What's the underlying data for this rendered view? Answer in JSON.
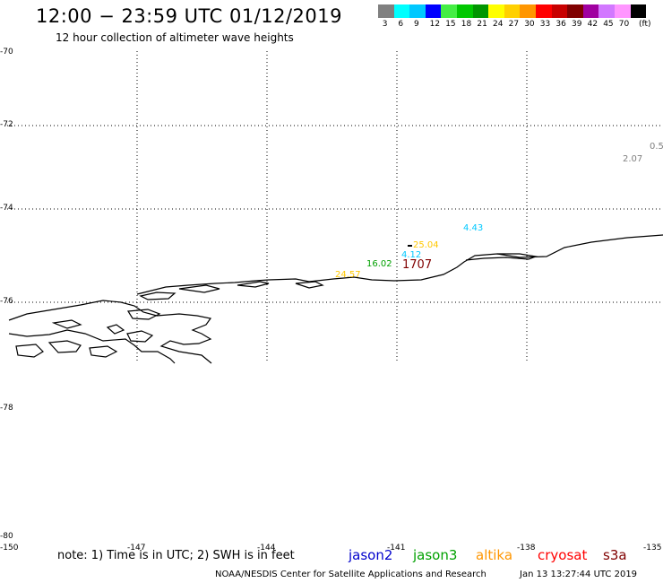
{
  "title": "12:00 − 23:59 UTC 01/12/2019",
  "subtitle": "12 hour collection of altimeter wave heights",
  "color_scale": {
    "unit": "(ft)",
    "bins": [
      {
        "label": "3",
        "color": "#808080"
      },
      {
        "label": "6",
        "color": "#00ffff"
      },
      {
        "label": "9",
        "color": "#00c8ff"
      },
      {
        "label": "12",
        "color": "#0000ff"
      },
      {
        "label": "15",
        "color": "#44ee44"
      },
      {
        "label": "18",
        "color": "#00c800"
      },
      {
        "label": "21",
        "color": "#009600"
      },
      {
        "label": "24",
        "color": "#ffff00"
      },
      {
        "label": "27",
        "color": "#ffd000"
      },
      {
        "label": "30",
        "color": "#ff9600"
      },
      {
        "label": "33",
        "color": "#ff0000"
      },
      {
        "label": "36",
        "color": "#c80000"
      },
      {
        "label": "39",
        "color": "#800000"
      },
      {
        "label": "42",
        "color": "#a000a0"
      },
      {
        "label": "45",
        "color": "#d278ff"
      },
      {
        "label": "70",
        "color": "#ff96ff"
      },
      {
        "label": "",
        "color": "#000000"
      }
    ]
  },
  "axes": {
    "lat_ticks": [
      "-70",
      "-72",
      "-74",
      "-76",
      "-78",
      "-80"
    ],
    "lon_ticks": [
      "-150",
      "-147",
      "-144",
      "-141",
      "-138",
      "-135"
    ]
  },
  "wave_heights": [
    {
      "text": "0.5",
      "color": "#808080"
    },
    {
      "text": "2.07",
      "color": "#808080"
    },
    {
      "text": "4.43",
      "color": "#00c8ff"
    },
    {
      "text": "25.04",
      "color": "#ffc800"
    },
    {
      "text": "4.12",
      "color": "#00c8ff"
    },
    {
      "text": "16.02",
      "color": "#00a000"
    },
    {
      "text": "1707",
      "color": "#800000"
    },
    {
      "text": "24.57",
      "color": "#ffc800"
    }
  ],
  "satellites": [
    {
      "name": "jason2",
      "color": "#0000cc"
    },
    {
      "name": "jason3",
      "color": "#00a000"
    },
    {
      "name": "altika",
      "color": "#ff9600"
    },
    {
      "name": "cryosat",
      "color": "#ff0000"
    },
    {
      "name": "s3a",
      "color": "#800000"
    }
  ],
  "note": "note:  1) Time is in UTC;  2) SWH is in feet",
  "credit": "NOAA/NESDIS Center for Satellite Applications and Research",
  "timestamp": "Jan 13 13:27:44 UTC 2019"
}
